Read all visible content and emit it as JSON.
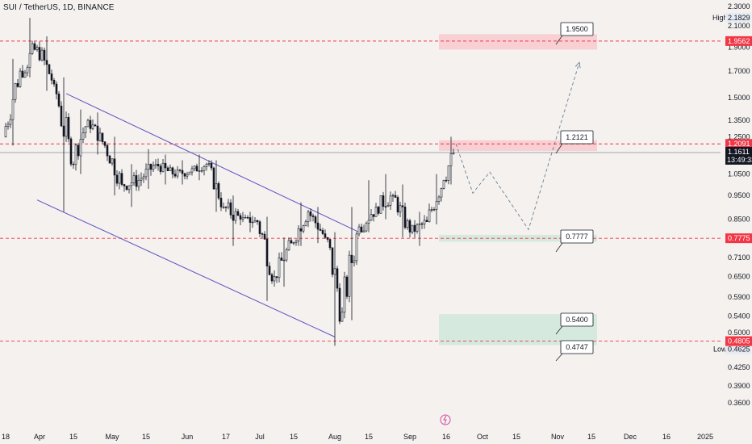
{
  "header": {
    "symbol_title": "SUI / TetherUS, 1D, BINANCE"
  },
  "chart_data": {
    "type": "candlestick",
    "price_axis": {
      "ticks": [
        "2.3000",
        "2.1000",
        "1.9000",
        "1.7000",
        "1.5000",
        "1.3500",
        "1.2500",
        "1.0500",
        "0.9500",
        "0.8500",
        "0.7100",
        "0.6500",
        "0.5900",
        "0.5400",
        "0.5000",
        "0.4625",
        "0.4250",
        "0.3900",
        "0.3600"
      ],
      "scale": "log",
      "range": [
        0.355,
        2.36
      ]
    },
    "time_axis": {
      "labels": [
        "18",
        "Apr",
        "15",
        "May",
        "15",
        "Jun",
        "17",
        "Jul",
        "15",
        "Aug",
        "15",
        "Sep",
        "16",
        "Oct",
        "15",
        "Nov",
        "15",
        "Dec",
        "16",
        "2025"
      ]
    },
    "stats": {
      "high_label": "High",
      "high_value": "2.1829",
      "low_label": "Low",
      "low_value": "0.4625"
    },
    "horizontal_levels": [
      {
        "value": 1.9562,
        "tag": "1.9562",
        "color": "#f23645"
      },
      {
        "value": 1.2091,
        "tag": "1.2091",
        "color": "#f23645"
      },
      {
        "value": 0.7775,
        "tag": "0.7775",
        "color": "#f23645"
      },
      {
        "value": 0.4805,
        "tag": "0.4805",
        "color": "#f23645"
      }
    ],
    "current_price": {
      "value": 1.1611,
      "tag": "1.1611",
      "countdown": "13:49:33",
      "color": "#131722"
    },
    "callouts": [
      "1.9500",
      "1.2121",
      "0.7777",
      "0.5400",
      "0.4747"
    ],
    "zones": [
      {
        "kind": "resistance",
        "from": 1.88,
        "to": 2.02
      },
      {
        "kind": "resistance",
        "from": 1.17,
        "to": 1.23
      },
      {
        "kind": "support",
        "from": 0.765,
        "to": 0.79
      },
      {
        "kind": "support",
        "from": 0.472,
        "to": 0.545
      }
    ],
    "candles_weekly_approx": [
      {
        "date": "2024-03-18",
        "o": 1.25,
        "h": 1.8,
        "l": 1.2,
        "c": 1.7
      },
      {
        "date": "2024-03-25",
        "o": 1.7,
        "h": 2.18,
        "l": 1.65,
        "c": 1.9
      },
      {
        "date": "2024-04-01",
        "o": 1.9,
        "h": 2.0,
        "l": 1.55,
        "c": 1.6
      },
      {
        "date": "2024-04-08",
        "o": 1.6,
        "h": 1.65,
        "l": 0.88,
        "c": 1.1
      },
      {
        "date": "2024-04-15",
        "o": 1.1,
        "h": 1.42,
        "l": 1.05,
        "c": 1.35
      },
      {
        "date": "2024-04-22",
        "o": 1.35,
        "h": 1.4,
        "l": 1.15,
        "c": 1.2
      },
      {
        "date": "2024-04-29",
        "o": 1.2,
        "h": 1.25,
        "l": 0.95,
        "c": 1.0
      },
      {
        "date": "2024-05-06",
        "o": 1.0,
        "h": 1.1,
        "l": 0.9,
        "c": 1.02
      },
      {
        "date": "2024-05-13",
        "o": 1.02,
        "h": 1.18,
        "l": 0.98,
        "c": 1.1
      },
      {
        "date": "2024-05-20",
        "o": 1.1,
        "h": 1.15,
        "l": 1.0,
        "c": 1.05
      },
      {
        "date": "2024-05-27",
        "o": 1.05,
        "h": 1.12,
        "l": 1.0,
        "c": 1.06
      },
      {
        "date": "2024-06-03",
        "o": 1.06,
        "h": 1.15,
        "l": 1.02,
        "c": 1.1
      },
      {
        "date": "2024-06-10",
        "o": 1.1,
        "h": 1.12,
        "l": 0.88,
        "c": 0.9
      },
      {
        "date": "2024-06-17",
        "o": 0.9,
        "h": 0.95,
        "l": 0.75,
        "c": 0.85
      },
      {
        "date": "2024-06-24",
        "o": 0.85,
        "h": 0.88,
        "l": 0.8,
        "c": 0.84
      },
      {
        "date": "2024-07-01",
        "o": 0.84,
        "h": 0.86,
        "l": 0.58,
        "c": 0.65
      },
      {
        "date": "2024-07-08",
        "o": 0.65,
        "h": 0.78,
        "l": 0.62,
        "c": 0.76
      },
      {
        "date": "2024-07-15",
        "o": 0.76,
        "h": 0.92,
        "l": 0.75,
        "c": 0.88
      },
      {
        "date": "2024-07-22",
        "o": 0.88,
        "h": 0.9,
        "l": 0.76,
        "c": 0.78
      },
      {
        "date": "2024-07-29",
        "o": 0.78,
        "h": 0.8,
        "l": 0.47,
        "c": 0.55
      },
      {
        "date": "2024-08-05",
        "o": 0.55,
        "h": 0.9,
        "l": 0.53,
        "c": 0.82
      },
      {
        "date": "2024-08-12",
        "o": 0.82,
        "h": 1.02,
        "l": 0.8,
        "c": 0.9
      },
      {
        "date": "2024-08-19",
        "o": 0.9,
        "h": 1.05,
        "l": 0.85,
        "c": 0.95
      },
      {
        "date": "2024-08-26",
        "o": 0.95,
        "h": 1.0,
        "l": 0.78,
        "c": 0.8
      },
      {
        "date": "2024-09-02",
        "o": 0.8,
        "h": 0.88,
        "l": 0.75,
        "c": 0.84
      },
      {
        "date": "2024-09-09",
        "o": 0.84,
        "h": 1.05,
        "l": 0.83,
        "c": 1.02
      },
      {
        "date": "2024-09-16",
        "o": 1.02,
        "h": 1.25,
        "l": 1.0,
        "c": 1.16
      }
    ],
    "projection": [
      {
        "date": "2024-09-20",
        "value": 1.21
      },
      {
        "date": "2024-09-27",
        "value": 0.96
      },
      {
        "date": "2024-10-04",
        "value": 1.06
      },
      {
        "date": "2024-10-20",
        "value": 0.81
      },
      {
        "date": "2024-11-10",
        "value": 1.77
      }
    ],
    "channel": {
      "upper": [
        {
          "date": "2024-04-12",
          "value": 1.53
        },
        {
          "date": "2024-08-11",
          "value": 0.8
        }
      ],
      "lower": [
        {
          "date": "2024-03-31",
          "value": 0.93
        },
        {
          "date": "2024-08-01",
          "value": 0.49
        }
      ]
    },
    "colors": {
      "bull": "#ffffff",
      "bear": "#131722",
      "outline": "#131722",
      "level": "#f23645",
      "resistance_zone": "#f8c9cd",
      "support_zone": "#cfe8dc",
      "channel": "#5f52c2",
      "projection": "#6a7f95",
      "axis_bg": "#f4f1ee"
    },
    "grid": false,
    "legend": "top-left"
  }
}
